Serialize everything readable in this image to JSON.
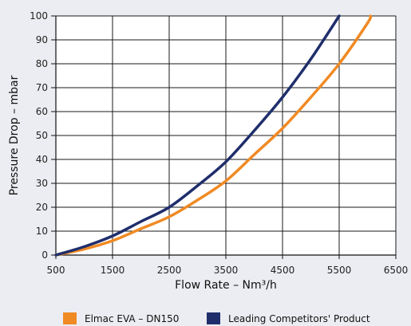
{
  "chart_data": {
    "type": "line",
    "title": "",
    "xlabel": "Flow Rate – Nm³/h",
    "ylabel": "Pressure Drop – mbar",
    "xlim": [
      500,
      6500
    ],
    "ylim": [
      0,
      100
    ],
    "x_ticks": [
      500,
      1500,
      2500,
      3500,
      4500,
      5500,
      6500
    ],
    "y_ticks": [
      0,
      10,
      20,
      30,
      40,
      50,
      60,
      70,
      80,
      90,
      100
    ],
    "x_tick_labels": [
      "500",
      "1500",
      "2500",
      "3500",
      "4500",
      "5500",
      "6500"
    ],
    "y_tick_labels": [
      "0",
      "10",
      "20",
      "30",
      "40",
      "50",
      "60",
      "70",
      "80",
      "90",
      "100"
    ],
    "grid": true,
    "legend_position": "bottom",
    "series": [
      {
        "name": "Elmac EVA – DN150",
        "color": "#f08a24",
        "x": [
          500,
          1000,
          1500,
          2000,
          2500,
          3000,
          3500,
          4000,
          4500,
          5000,
          5500,
          6000,
          6050
        ],
        "y": [
          0,
          2.5,
          6,
          11,
          16,
          23,
          31,
          42,
          53,
          66,
          80,
          97,
          100
        ]
      },
      {
        "name": "Leading Competitors' Product",
        "color": "#1f2e6b",
        "x": [
          500,
          1000,
          1500,
          2000,
          2500,
          3000,
          3500,
          4000,
          4500,
          5000,
          5500
        ],
        "y": [
          0,
          3.5,
          8,
          14,
          20,
          29,
          39,
          52,
          66,
          82,
          100
        ]
      }
    ]
  }
}
